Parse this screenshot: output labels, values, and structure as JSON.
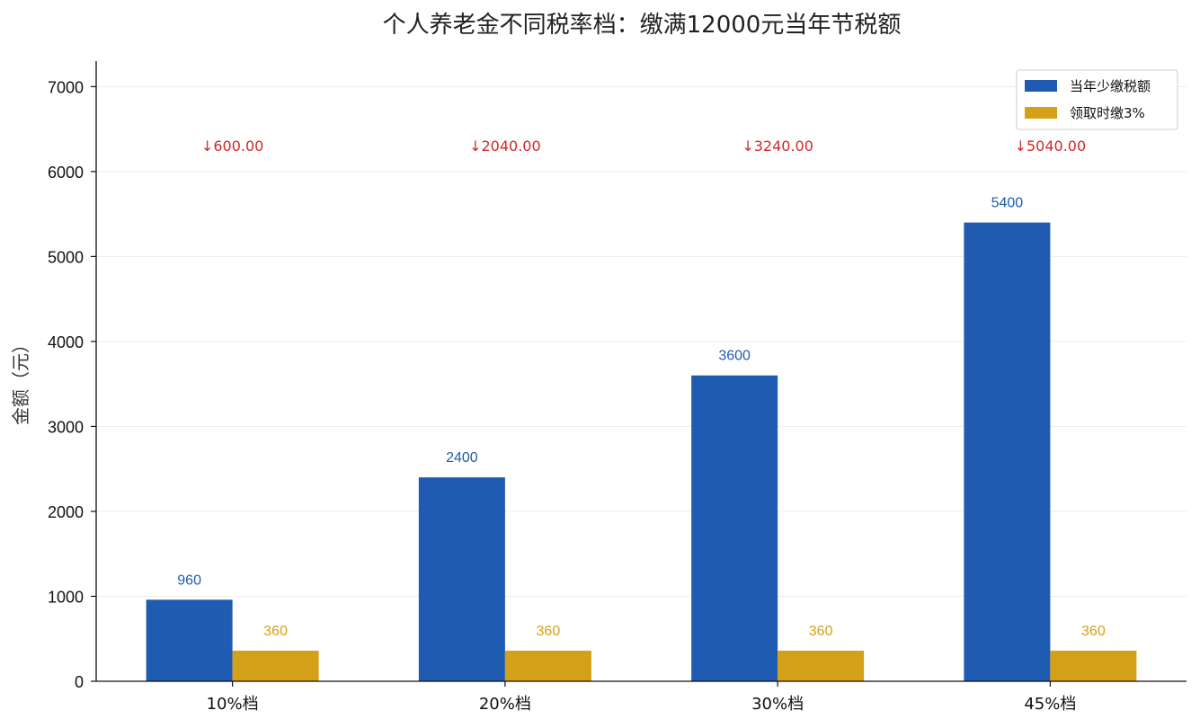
{
  "chart_data": {
    "type": "bar",
    "title": "个人养老金不同税率档：缴满12000元当年节税额",
    "xlabel": "",
    "ylabel": "金额（元）",
    "ylim": [
      0,
      7300
    ],
    "yticks": [
      0,
      1000,
      2000,
      3000,
      4000,
      5000,
      6000,
      7000
    ],
    "categories": [
      "10%档",
      "20%档",
      "30%档",
      "45%档"
    ],
    "series": [
      {
        "name": "当年少缴税额",
        "values": [
          960,
          2400,
          3600,
          5400
        ],
        "color": "#1f5bb0"
      },
      {
        "name": "领取时缴3%",
        "values": [
          360,
          360,
          360,
          360
        ],
        "color": "#d4a017"
      }
    ],
    "annotations": [
      "↓600.00",
      "↓2040.00",
      "↓3240.00",
      "↓5040.00"
    ],
    "annotation_color": "#d62728",
    "grid": true,
    "legend_position": "top-right"
  }
}
